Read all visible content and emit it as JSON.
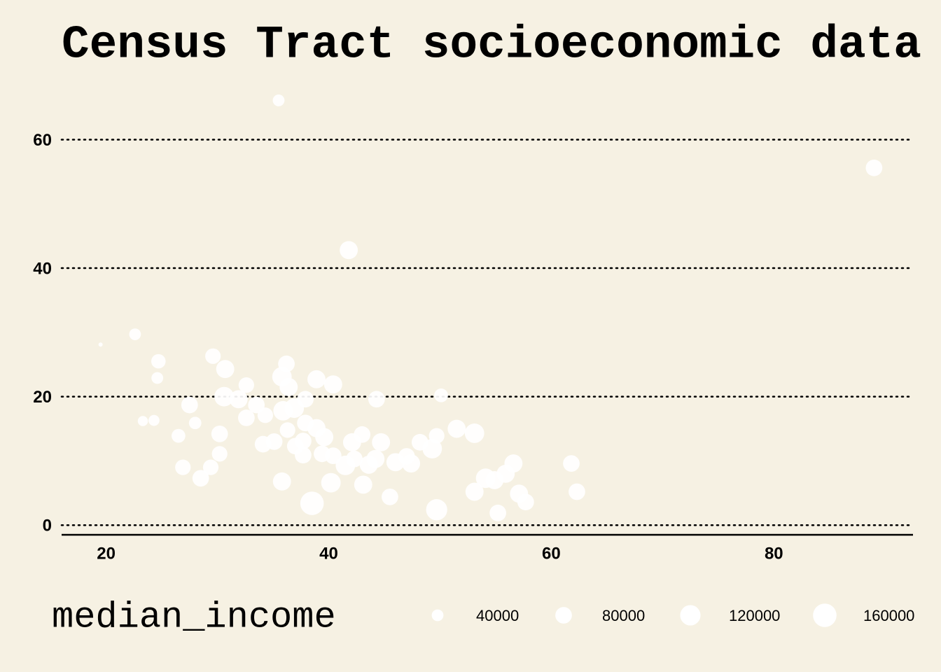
{
  "chart_data": {
    "type": "scatter",
    "title": "Census Tract socioeconomic data",
    "color": "#ffffff",
    "grid": true,
    "xlim": [
      16,
      92.5
    ],
    "ylim": [
      -1.5,
      68
    ],
    "xticks": [
      20,
      40,
      60,
      80
    ],
    "yticks": [
      0,
      20,
      40,
      60
    ],
    "x": [
      19.5,
      22.6,
      24.7,
      24.6,
      23.3,
      24.3,
      26.5,
      27.5,
      28.0,
      26.9,
      28.5,
      29.4,
      30.2,
      29.6,
      30.7,
      30.2,
      30.6,
      31.9,
      32.6,
      32.6,
      33.5,
      34.3,
      34.1,
      35.1,
      35.5,
      35.8,
      36.2,
      36.4,
      35.9,
      36.9,
      37.9,
      36.3,
      37.0,
      37.7,
      37.7,
      35.8,
      37.9,
      38.9,
      38.9,
      39.6,
      39.4,
      40.4,
      40.4,
      38.5,
      40.2,
      41.5,
      42.3,
      42.1,
      43.0,
      41.8,
      43.6,
      43.1,
      44.2,
      44.7,
      44.3,
      45.5,
      46.0,
      47.4,
      47.0,
      48.2,
      49.3,
      49.7,
      50.1,
      49.7,
      51.5,
      53.1,
      53.1,
      54.1,
      54.9,
      55.9,
      56.6,
      55.2,
      57.1,
      57.7,
      61.8,
      62.3,
      89.0
    ],
    "y": [
      28.1,
      29.7,
      25.5,
      22.9,
      16.2,
      16.3,
      13.9,
      18.7,
      15.9,
      9.0,
      7.3,
      9.0,
      11.1,
      26.3,
      24.3,
      14.2,
      20.0,
      19.6,
      21.8,
      16.7,
      18.7,
      17.1,
      12.6,
      13.0,
      66.1,
      23.1,
      25.1,
      21.5,
      17.8,
      18.2,
      19.6,
      14.8,
      12.3,
      13.1,
      10.9,
      6.8,
      15.9,
      15.1,
      22.7,
      13.7,
      11.1,
      21.9,
      10.8,
      3.4,
      6.6,
      9.3,
      10.3,
      12.9,
      14.1,
      42.8,
      9.4,
      6.3,
      10.3,
      12.9,
      19.6,
      4.4,
      9.8,
      9.6,
      10.7,
      12.9,
      11.9,
      13.9,
      20.2,
      2.4,
      15.0,
      14.3,
      5.2,
      7.3,
      7.0,
      8.0,
      9.6,
      1.9,
      4.9,
      3.6,
      9.6,
      5.2,
      55.6
    ],
    "size": [
      5000,
      40000,
      60000,
      40000,
      30000,
      35000,
      55000,
      80000,
      45000,
      70000,
      80000,
      70000,
      70000,
      70000,
      95000,
      80000,
      110000,
      95000,
      70000,
      80000,
      80000,
      70000,
      80000,
      80000,
      40000,
      110000,
      80000,
      95000,
      110000,
      110000,
      80000,
      70000,
      80000,
      80000,
      80000,
      95000,
      80000,
      95000,
      95000,
      95000,
      80000,
      95000,
      80000,
      160000,
      110000,
      110000,
      80000,
      95000,
      80000,
      95000,
      95000,
      95000,
      95000,
      95000,
      80000,
      80000,
      95000,
      95000,
      80000,
      80000,
      110000,
      70000,
      55000,
      130000,
      95000,
      110000,
      95000,
      110000,
      95000,
      95000,
      95000,
      80000,
      95000,
      80000,
      80000,
      80000,
      80000
    ],
    "size_legend": {
      "title": "median_income",
      "values": [
        40000,
        80000,
        120000,
        160000
      ]
    }
  }
}
